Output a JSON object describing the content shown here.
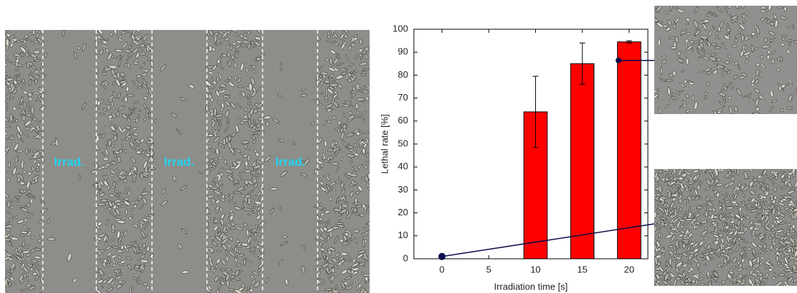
{
  "image": {
    "labels": [
      "Irrad.",
      "Irrad.",
      "Irrad."
    ]
  },
  "chart_data": {
    "type": "bar",
    "xlabel": "Irradiation time [s]",
    "ylabel": "Lethal rate [%]",
    "bars": {
      "x": [
        10,
        15,
        20
      ],
      "values": [
        64,
        85,
        94.5
      ],
      "errors": [
        15.5,
        9,
        0.5
      ],
      "color": "#ff0000"
    },
    "marker": {
      "x": 0,
      "value": 1,
      "color": "#0d0d4d"
    },
    "xlim": [
      -3,
      22
    ],
    "xticks": [
      0,
      5,
      10,
      15,
      20
    ],
    "ylim": [
      0,
      100
    ],
    "yticks": [
      0,
      10,
      20,
      30,
      40,
      50,
      60,
      70,
      80,
      90,
      100
    ]
  }
}
